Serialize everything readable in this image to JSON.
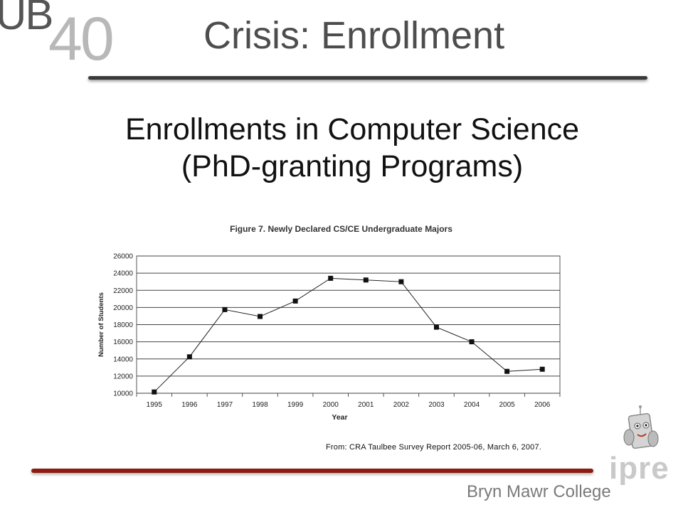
{
  "logo": {
    "letters": "UB",
    "number": "40"
  },
  "slide_title": "Crisis: Enrollment",
  "heading": {
    "line1": "Enrollments in Computer Science",
    "line2": "(PhD-granting Programs)"
  },
  "source": "From: CRA Taulbee Survey Report 2005-06, March 6, 2007.",
  "footer": {
    "college": "Bryn Mawr College",
    "brand": "ipre"
  },
  "colors": {
    "footer_rule": "#8b1c12",
    "brand_text": "#c9c9c9"
  },
  "chart_data": {
    "type": "line",
    "title": "Figure 7. Newly Declared CS/CE Undergraduate Majors",
    "xlabel": "Year",
    "ylabel": "Number of Students",
    "categories": [
      "1995",
      "1996",
      "1997",
      "1998",
      "1999",
      "2000",
      "2001",
      "2002",
      "2003",
      "2004",
      "2005",
      "2006"
    ],
    "series": [
      {
        "values": [
          10150,
          14250,
          19750,
          18950,
          20750,
          23400,
          23200,
          23000,
          17700,
          16000,
          12550,
          12800
        ]
      }
    ],
    "ylim": [
      10000,
      26000
    ],
    "yticks": [
      10000,
      12000,
      14000,
      16000,
      18000,
      20000,
      22000,
      24000,
      26000
    ],
    "grid": "horizontal",
    "marker": "square"
  }
}
